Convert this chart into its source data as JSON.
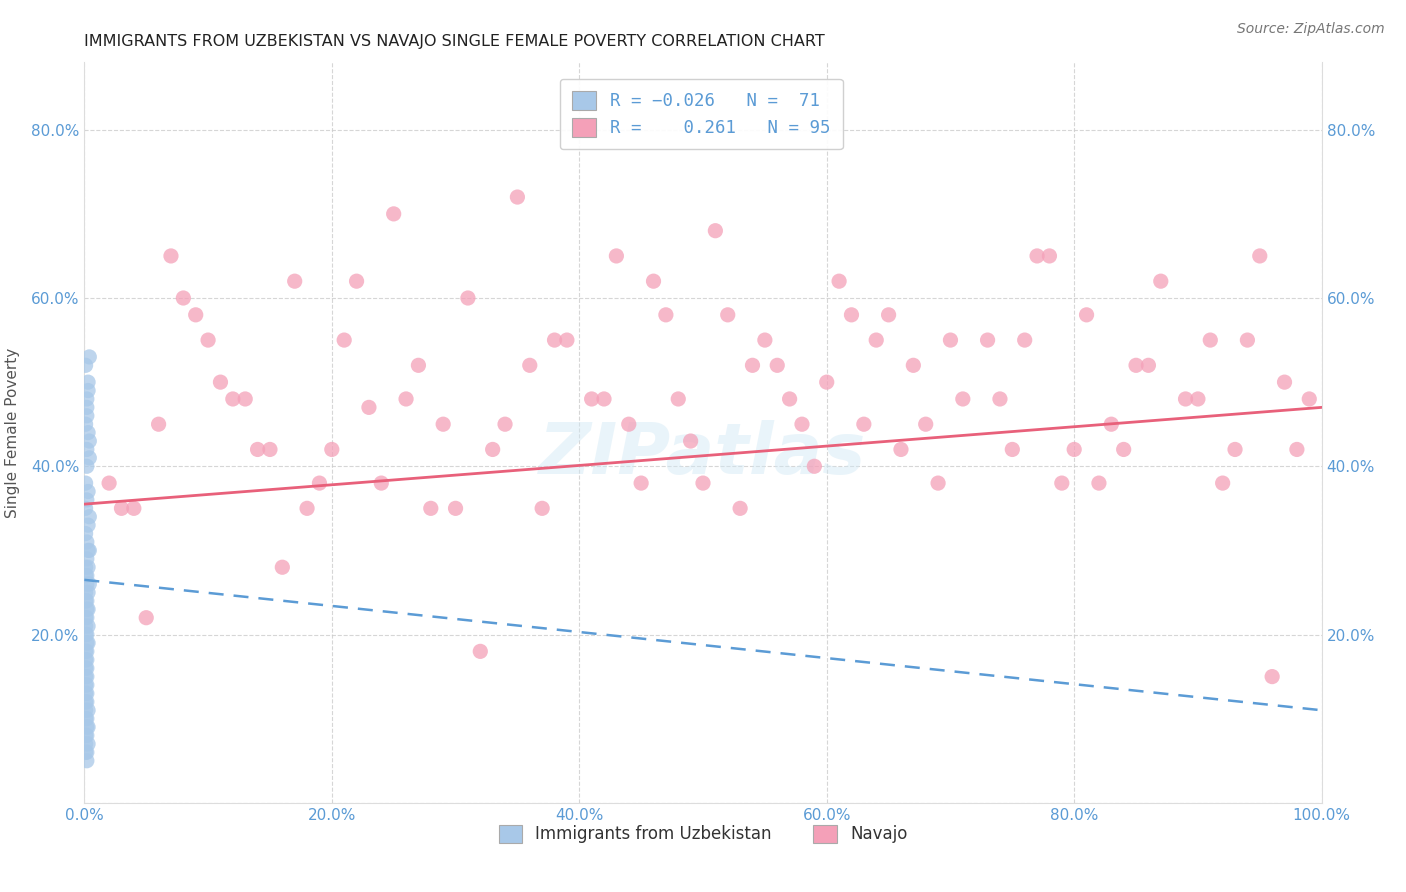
{
  "title": "IMMIGRANTS FROM UZBEKISTAN VS NAVAJO SINGLE FEMALE POVERTY CORRELATION CHART",
  "source": "Source: ZipAtlas.com",
  "ylabel": "Single Female Poverty",
  "xlim": [
    0.0,
    1.0
  ],
  "ylim": [
    0.0,
    0.88
  ],
  "xticks": [
    0.0,
    0.2,
    0.4,
    0.6,
    0.8,
    1.0
  ],
  "yticks": [
    0.0,
    0.2,
    0.4,
    0.6,
    0.8
  ],
  "xticklabels": [
    "0.0%",
    "20.0%",
    "40.0%",
    "60.0%",
    "80.0%",
    "100.0%"
  ],
  "yticklabels_left": [
    "",
    "20.0%",
    "40.0%",
    "60.0%",
    "80.0%"
  ],
  "yticklabels_right": [
    "",
    "20.0%",
    "40.0%",
    "60.0%",
    "80.0%"
  ],
  "series1_label": "Immigrants from Uzbekistan",
  "series2_label": "Navajo",
  "series1_color": "#a8c8e8",
  "series2_color": "#f4a0b8",
  "series1_line_color": "#5b9bd5",
  "series2_line_color": "#e8607a",
  "trend1_intercept": 0.265,
  "trend1_slope": -0.155,
  "trend2_intercept": 0.355,
  "trend2_slope": 0.115,
  "watermark": "ZIPatlas",
  "background_color": "#ffffff",
  "grid_color": "#cccccc",
  "axis_color": "#5b9bd5",
  "title_fontsize": 11.5,
  "tick_fontsize": 11,
  "series1_x": [
    0.002,
    0.003,
    0.004,
    0.002,
    0.001,
    0.003,
    0.002,
    0.001,
    0.004,
    0.003,
    0.001,
    0.002,
    0.003,
    0.004,
    0.002,
    0.001,
    0.003,
    0.002,
    0.001,
    0.004,
    0.002,
    0.001,
    0.003,
    0.002,
    0.001,
    0.002,
    0.003,
    0.001,
    0.002,
    0.003,
    0.001,
    0.002,
    0.001,
    0.002,
    0.003,
    0.001,
    0.002,
    0.001,
    0.002,
    0.001,
    0.002,
    0.001,
    0.002,
    0.001,
    0.002,
    0.001,
    0.002,
    0.001,
    0.002,
    0.001,
    0.003,
    0.002,
    0.001,
    0.002,
    0.003,
    0.001,
    0.002,
    0.001,
    0.003,
    0.002,
    0.001,
    0.002,
    0.003,
    0.004,
    0.002,
    0.001,
    0.003,
    0.002,
    0.001,
    0.002,
    0.004
  ],
  "series1_y": [
    0.46,
    0.44,
    0.43,
    0.4,
    0.38,
    0.37,
    0.36,
    0.35,
    0.34,
    0.33,
    0.32,
    0.31,
    0.3,
    0.3,
    0.29,
    0.28,
    0.28,
    0.27,
    0.27,
    0.26,
    0.26,
    0.25,
    0.25,
    0.24,
    0.24,
    0.23,
    0.23,
    0.22,
    0.22,
    0.21,
    0.21,
    0.2,
    0.2,
    0.19,
    0.19,
    0.18,
    0.18,
    0.17,
    0.17,
    0.16,
    0.16,
    0.15,
    0.15,
    0.14,
    0.14,
    0.13,
    0.13,
    0.12,
    0.12,
    0.11,
    0.11,
    0.1,
    0.1,
    0.09,
    0.09,
    0.08,
    0.08,
    0.07,
    0.07,
    0.06,
    0.06,
    0.05,
    0.5,
    0.53,
    0.48,
    0.52,
    0.49,
    0.47,
    0.45,
    0.42,
    0.41
  ],
  "series2_x": [
    0.04,
    0.07,
    0.09,
    0.11,
    0.13,
    0.15,
    0.17,
    0.19,
    0.21,
    0.23,
    0.25,
    0.27,
    0.29,
    0.31,
    0.33,
    0.35,
    0.37,
    0.39,
    0.41,
    0.43,
    0.45,
    0.47,
    0.49,
    0.51,
    0.53,
    0.55,
    0.57,
    0.59,
    0.61,
    0.63,
    0.65,
    0.67,
    0.69,
    0.71,
    0.73,
    0.75,
    0.77,
    0.79,
    0.81,
    0.83,
    0.85,
    0.87,
    0.89,
    0.91,
    0.93,
    0.95,
    0.97,
    0.99,
    0.02,
    0.06,
    0.1,
    0.14,
    0.18,
    0.22,
    0.26,
    0.3,
    0.34,
    0.38,
    0.42,
    0.46,
    0.5,
    0.54,
    0.58,
    0.62,
    0.66,
    0.7,
    0.74,
    0.78,
    0.82,
    0.86,
    0.9,
    0.94,
    0.98,
    0.03,
    0.08,
    0.12,
    0.2,
    0.28,
    0.36,
    0.44,
    0.52,
    0.6,
    0.68,
    0.76,
    0.84,
    0.92,
    0.96,
    0.05,
    0.16,
    0.32,
    0.48,
    0.64,
    0.8,
    0.24,
    0.56
  ],
  "series2_y": [
    0.35,
    0.65,
    0.58,
    0.5,
    0.48,
    0.42,
    0.62,
    0.38,
    0.55,
    0.47,
    0.7,
    0.52,
    0.45,
    0.6,
    0.42,
    0.72,
    0.35,
    0.55,
    0.48,
    0.65,
    0.38,
    0.58,
    0.43,
    0.68,
    0.35,
    0.55,
    0.48,
    0.4,
    0.62,
    0.45,
    0.58,
    0.52,
    0.38,
    0.48,
    0.55,
    0.42,
    0.65,
    0.38,
    0.58,
    0.45,
    0.52,
    0.62,
    0.48,
    0.55,
    0.42,
    0.65,
    0.5,
    0.48,
    0.38,
    0.45,
    0.55,
    0.42,
    0.35,
    0.62,
    0.48,
    0.35,
    0.45,
    0.55,
    0.48,
    0.62,
    0.38,
    0.52,
    0.45,
    0.58,
    0.42,
    0.55,
    0.48,
    0.65,
    0.38,
    0.52,
    0.48,
    0.55,
    0.42,
    0.35,
    0.6,
    0.48,
    0.42,
    0.35,
    0.52,
    0.45,
    0.58,
    0.5,
    0.45,
    0.55,
    0.42,
    0.38,
    0.15,
    0.22,
    0.28,
    0.18,
    0.48,
    0.55,
    0.42,
    0.38,
    0.52
  ]
}
